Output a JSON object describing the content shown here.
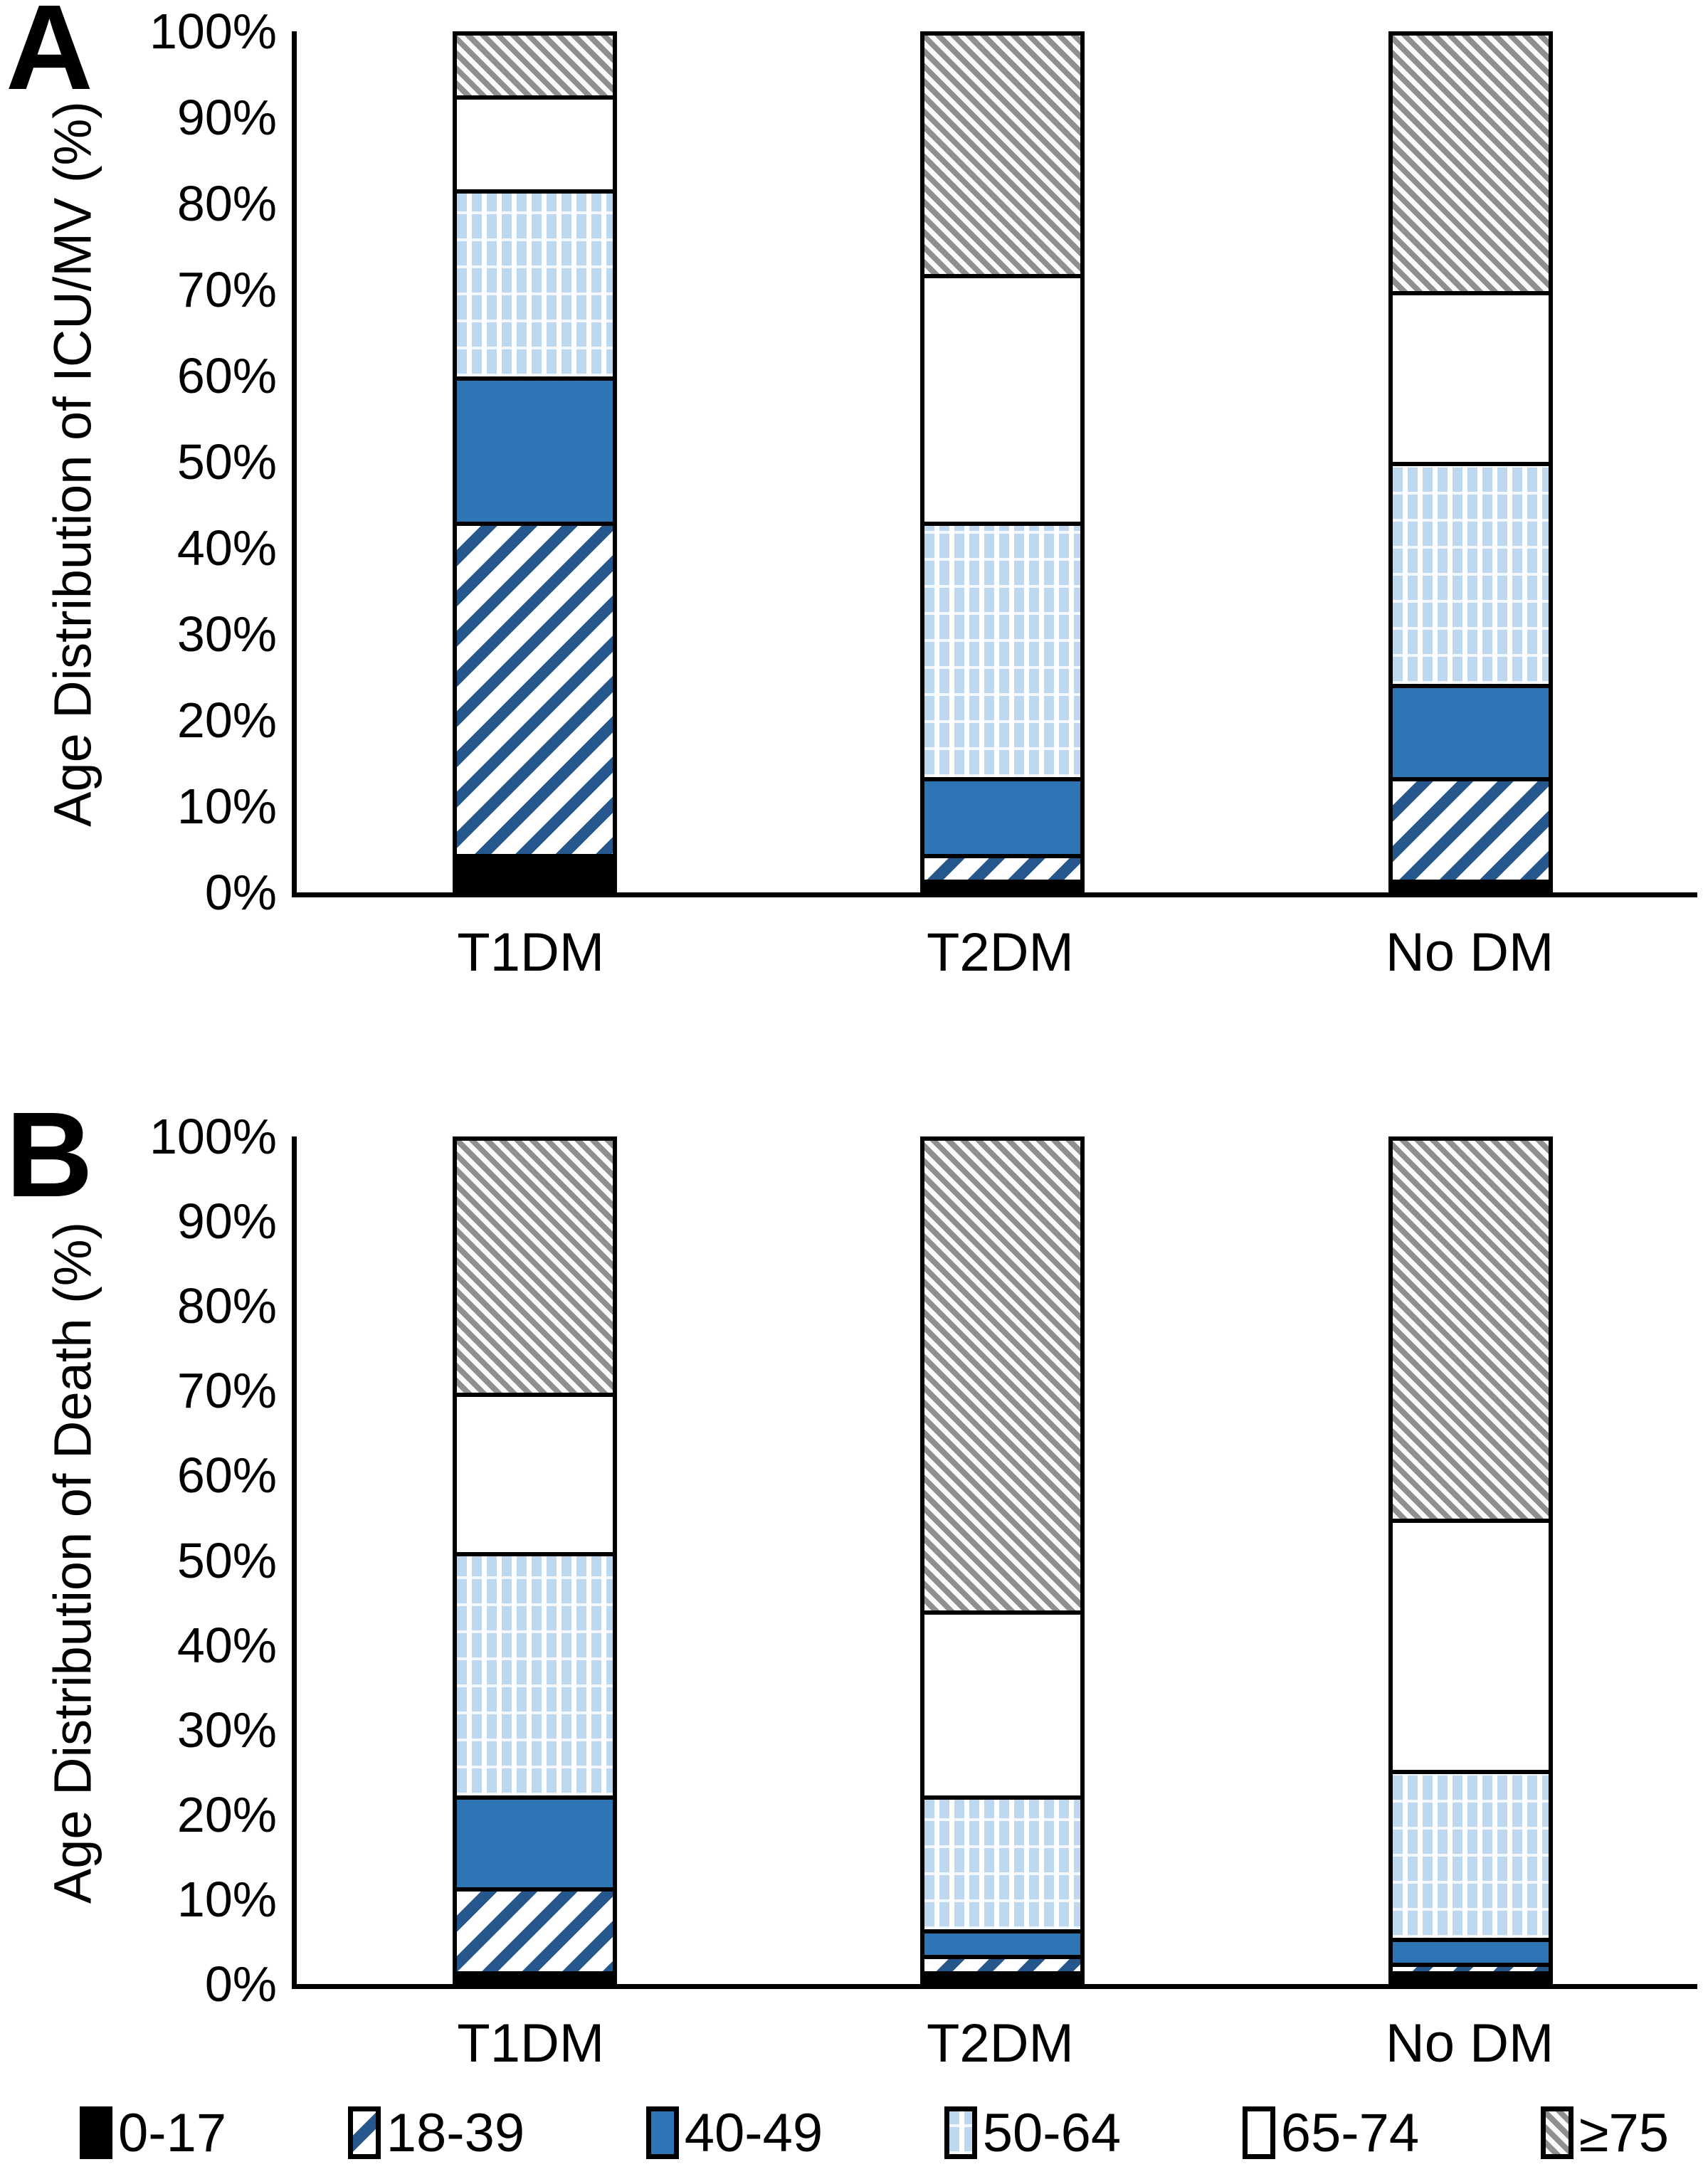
{
  "panels": [
    {
      "letter": "A",
      "y_axis_title": "Age Distribution of ICU/MV (%)"
    },
    {
      "letter": "B",
      "y_axis_title": "Age Distribution of Death (%)"
    }
  ],
  "axis": {
    "tick_values": [
      100,
      90,
      80,
      70,
      60,
      50,
      40,
      30,
      20,
      10,
      0
    ],
    "tick_labels": [
      "100%",
      "90%",
      "80%",
      "70%",
      "60%",
      "50%",
      "40%",
      "30%",
      "20%",
      "10%",
      "0%"
    ]
  },
  "legend": {
    "items": [
      {
        "label": "0-17",
        "pattern": "black"
      },
      {
        "label": "18-39",
        "pattern": "diag-blue"
      },
      {
        "label": "40-49",
        "pattern": "solid-blue"
      },
      {
        "label": "50-64",
        "pattern": "vstripe-blue"
      },
      {
        "label": "65-74",
        "pattern": "white"
      },
      {
        "label": "≥75",
        "pattern": "diag-gray"
      }
    ]
  },
  "palette": {
    "black": "#000000",
    "white": "#FFFFFF",
    "solid_blue": "#2E75B6",
    "hatch_blue": "#26578C",
    "light_blue": "#BDD7EE",
    "hatch_gray": "#8F8F8F"
  },
  "chart_data": [
    {
      "type": "bar",
      "stacked": true,
      "panel": "A",
      "ylabel": "Age Distribution of ICU/MV (%)",
      "ylim": [
        0,
        100
      ],
      "grid": false,
      "legend_position": "bottom",
      "categories": [
        "T1DM",
        "T2DM",
        "No DM"
      ],
      "series": [
        {
          "name": "0-17",
          "pattern": "black",
          "values": [
            4,
            1,
            1
          ]
        },
        {
          "name": "18-39",
          "pattern": "diag-blue",
          "values": [
            39,
            3,
            12
          ]
        },
        {
          "name": "40-49",
          "pattern": "solid-blue",
          "values": [
            17,
            9,
            11
          ]
        },
        {
          "name": "50-64",
          "pattern": "vstripe-blue",
          "values": [
            22,
            30,
            26
          ]
        },
        {
          "name": "65-74",
          "pattern": "white",
          "values": [
            11,
            29,
            20
          ]
        },
        {
          "name": "≥75",
          "pattern": "diag-gray",
          "values": [
            7,
            28,
            30
          ]
        }
      ]
    },
    {
      "type": "bar",
      "stacked": true,
      "panel": "B",
      "ylabel": "Age Distribution of Death (%)",
      "ylim": [
        0,
        100
      ],
      "grid": false,
      "legend_position": "bottom",
      "categories": [
        "T1DM",
        "T2DM",
        "No DM"
      ],
      "series": [
        {
          "name": "0-17",
          "pattern": "black",
          "values": [
            1,
            1,
            1
          ]
        },
        {
          "name": "18-39",
          "pattern": "diag-blue",
          "values": [
            10,
            2,
            1
          ]
        },
        {
          "name": "40-49",
          "pattern": "solid-blue",
          "values": [
            11,
            3,
            3
          ]
        },
        {
          "name": "50-64",
          "pattern": "vstripe-blue",
          "values": [
            29,
            16,
            20
          ]
        },
        {
          "name": "65-74",
          "pattern": "white",
          "values": [
            19,
            22,
            30
          ]
        },
        {
          "name": "≥75",
          "pattern": "diag-gray",
          "values": [
            30,
            56,
            45
          ]
        }
      ]
    }
  ]
}
